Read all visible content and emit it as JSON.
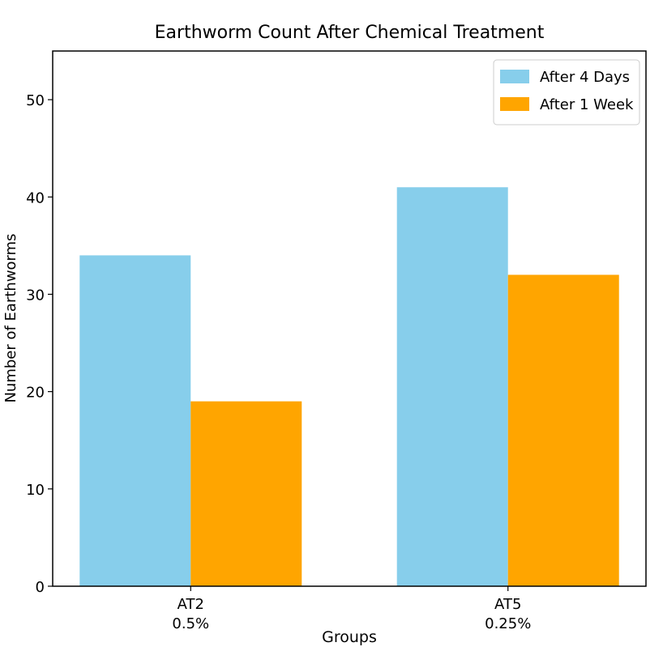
{
  "chart_data": {
    "type": "bar",
    "title": "Earthworm Count After Chemical Treatment",
    "xlabel": "Groups",
    "ylabel": "Number of Earthworms",
    "categories": [
      "AT2\n0.5%",
      "AT5\n0.25%"
    ],
    "series": [
      {
        "name": "After 4 Days",
        "values": [
          34,
          41
        ],
        "color": "#87CEEB"
      },
      {
        "name": "After 1 Week",
        "values": [
          19,
          32
        ],
        "color": "#FFA500"
      }
    ],
    "ylim": [
      0,
      55
    ],
    "yticks": [
      0,
      10,
      20,
      30,
      40,
      50
    ],
    "bar_width": 0.35,
    "grid": false,
    "legend_position": "top-right"
  }
}
